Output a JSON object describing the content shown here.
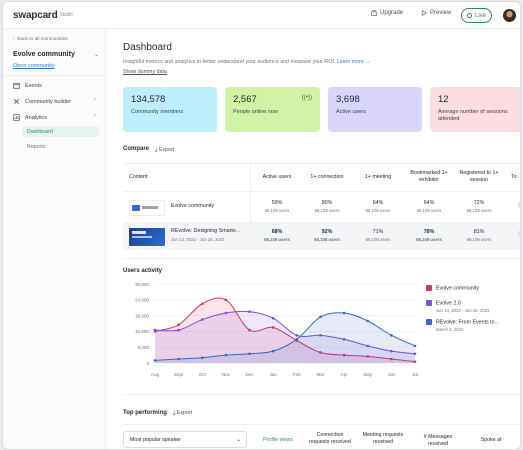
{
  "topbar": {
    "logo": "swapcard",
    "logo_suffix": "Studio",
    "upgrade": "Upgrade",
    "preview": "Preview",
    "live": "Live"
  },
  "sidebar": {
    "back": "Back to all communities",
    "community": "Evolve community",
    "open_community": "Open community",
    "items": [
      {
        "label": "Events",
        "icon": "calendar-icon"
      },
      {
        "label": "Community builder",
        "icon": "builder-icon"
      },
      {
        "label": "Analytics",
        "icon": "analytics-icon"
      }
    ],
    "analytics_sub": [
      "Dashboard",
      "Reports"
    ]
  },
  "page": {
    "title": "Dashboard",
    "subtitle": "Insightful metrics and analytics to better understand your audience and measure your ROI.",
    "learn_more": "Learn more →",
    "dummy": "Show dummy data"
  },
  "stats": [
    {
      "value": "134,578",
      "label": "Community members",
      "color": "#bdeefb"
    },
    {
      "value": "2,567",
      "label": "People online now",
      "color": "#d2f2a6",
      "icon": "((•))"
    },
    {
      "value": "3,698",
      "label": "Active users",
      "color": "#d9d5fb"
    },
    {
      "value": "12",
      "label": "Average number of sessions attended",
      "color": "#fbdde2"
    }
  ],
  "compare": {
    "title": "Compare",
    "export": "Export",
    "headers": [
      "Content",
      "Active users",
      "1+ connection",
      "1+ meeting",
      "Bookmarked 1+ exhibitor",
      "Registered to 1+ session",
      "To"
    ],
    "rows": [
      {
        "name": "Evolve community",
        "date": "",
        "values": [
          "59%",
          "80%",
          "64%",
          "64%",
          "72%"
        ],
        "sub": "68,108 users"
      },
      {
        "name": "REvolve: Designing Smarte...",
        "date": "Jun 14, 2022 - Jun 16, 2022",
        "values": [
          "68%",
          "92%",
          "71%",
          "78%",
          "81%"
        ],
        "sub": "68,108 users"
      }
    ]
  },
  "users_activity": {
    "title": "Users activity",
    "legend": [
      {
        "name": "Evolve community",
        "date": "",
        "color": "#d6335a"
      },
      {
        "name": "Evolve 2.0",
        "date": "Jun 14, 2022 - Jun 16, 2022",
        "color": "#7b4fd6"
      },
      {
        "name": "REvolve: From Events to...",
        "date": "March 3, 2022",
        "color": "#3a66c4"
      }
    ]
  },
  "chart_data": {
    "type": "area",
    "title": "Users activity",
    "categories": [
      "Aug",
      "Sept",
      "Oct",
      "Nov",
      "Dec",
      "Jan",
      "Feb",
      "Mar",
      "Apr",
      "May",
      "Jun",
      "Jul"
    ],
    "y_ticks": [
      "30,000",
      "24,000",
      "18,000",
      "12,000",
      "6,000",
      "0"
    ],
    "ylim": [
      0,
      30000
    ],
    "grid": true,
    "legend_position": "right",
    "series": [
      {
        "name": "Evolve community",
        "color": "#d6335a",
        "values": [
          12000,
          14500,
          22500,
          24000,
          12500,
          13500,
          8500,
          4000,
          3000,
          2500,
          1500,
          500
        ]
      },
      {
        "name": "Evolve 2.0",
        "color": "#7b4fd6",
        "values": [
          12500,
          12500,
          16500,
          19000,
          19500,
          17000,
          10500,
          10500,
          9000,
          6500,
          4500,
          3500
        ]
      },
      {
        "name": "REvolve: From Events to...",
        "color": "#3a66c4",
        "values": [
          1000,
          1500,
          2000,
          3000,
          3500,
          4500,
          9000,
          17500,
          19000,
          16000,
          10500,
          6500
        ]
      }
    ]
  },
  "top_performing": {
    "title": "Top performing",
    "export": "Export",
    "select": "Most popular speaker",
    "headers": [
      "Profile views",
      "Connection requests received",
      "Meeting requests received",
      "# Messages received",
      "Spoke at"
    ]
  }
}
